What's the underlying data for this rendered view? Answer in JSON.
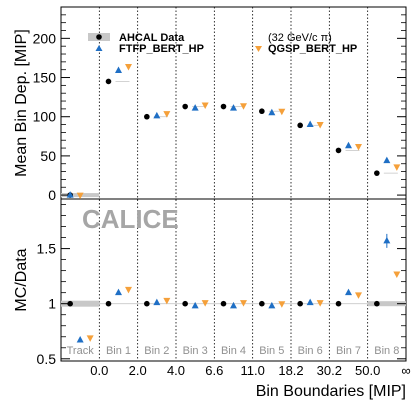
{
  "chart_data": [
    {
      "type": "scatter",
      "panel": "top",
      "ylabel": "Mean Bin Dep. [MIP]",
      "ylim": [
        -5,
        240
      ],
      "yticks": [
        0,
        50,
        100,
        150,
        200
      ],
      "grid": false,
      "legend_placement": "top-left",
      "annotation": "(32 GeV/c π)",
      "categories": [
        "Track",
        "Bin 1",
        "Bin 2",
        "Bin 3",
        "Bin 4",
        "Bin 5",
        "Bin 6",
        "Bin 7",
        "Bin 8"
      ],
      "series": [
        {
          "name": "AHCAL Data",
          "marker": "circle",
          "color": "#000000",
          "values": [
            0,
            145,
            100,
            113,
            113,
            107,
            89,
            57,
            28
          ]
        },
        {
          "name": "FTFP_BERT_HP",
          "marker": "triangle-up",
          "color": "#1f6fc5",
          "values": [
            0,
            159,
            101,
            111,
            111,
            105,
            90,
            63,
            44
          ]
        },
        {
          "name": "QGSP_BERT_HP",
          "marker": "triangle-down",
          "color": "#f5a03a",
          "values": [
            0,
            164,
            104,
            115,
            114,
            107,
            90,
            62,
            36
          ]
        }
      ]
    },
    {
      "type": "scatter",
      "panel": "bottom",
      "ylabel": "MC/Data",
      "xlabel": "Bin Boundaries [MIP]",
      "ylim": [
        0.48,
        1.95
      ],
      "yticks": [
        0.5,
        1,
        1.5
      ],
      "ytick_labels": [
        "0.5",
        "1",
        "1.5"
      ],
      "watermark": "CALICE",
      "x_boundary_labels": [
        "0.0",
        "2.0",
        "4.0",
        "6.6",
        "11.0",
        "18.2",
        "30.2",
        "50.0",
        "∞"
      ],
      "categories": [
        "Track",
        "Bin 1",
        "Bin 2",
        "Bin 3",
        "Bin 4",
        "Bin 5",
        "Bin 6",
        "Bin 7",
        "Bin 8"
      ],
      "series": [
        {
          "name": "AHCAL Data",
          "marker": "circle",
          "color": "#000000",
          "values": [
            1,
            1,
            1,
            1,
            1,
            1,
            1,
            1,
            1
          ]
        },
        {
          "name": "FTFP_BERT_HP",
          "marker": "triangle-up",
          "color": "#1f6fc5",
          "values": [
            0.67,
            1.1,
            1.01,
            0.98,
            0.98,
            0.98,
            1.01,
            1.1,
            1.57
          ]
        },
        {
          "name": "QGSP_BERT_HP",
          "marker": "triangle-down",
          "color": "#f5a03a",
          "values": [
            0.69,
            1.13,
            1.03,
            1.01,
            1.01,
            1.0,
            1.01,
            1.08,
            1.27
          ]
        }
      ]
    }
  ],
  "colors": {
    "data": "#000000",
    "ftfp": "#1f6fc5",
    "qgsp": "#f5a03a",
    "band": "#c8c8c8",
    "watermark": "#a6a6a6",
    "bin_label": "#909090"
  }
}
